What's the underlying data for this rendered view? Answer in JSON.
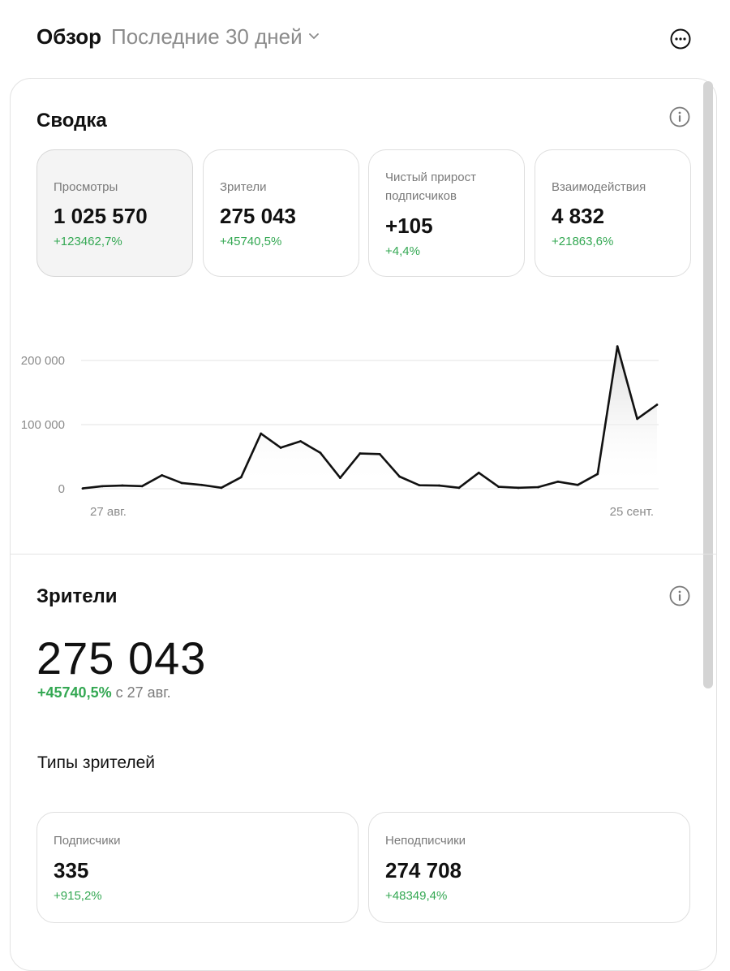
{
  "header": {
    "title": "Обзор",
    "range_label": "Последние 30 дней",
    "more_icon": "more-horizontal-icon"
  },
  "summary": {
    "title": "Сводка",
    "info_icon": "info-icon",
    "cards": [
      {
        "label": "Просмотры",
        "value": "1 025 570",
        "delta": "+123462,7%"
      },
      {
        "label": "Зрители",
        "value": "275 043",
        "delta": "+45740,5%"
      },
      {
        "label": "Чистый прирост подписчиков",
        "value": "+105",
        "delta": "+4,4%"
      },
      {
        "label": "Взаимодействия",
        "value": "4 832",
        "delta": "+21863,6%"
      }
    ]
  },
  "chart_data": {
    "type": "area",
    "y_ticks": [
      "200 000",
      "100 000",
      "0"
    ],
    "x_tick_labels": [
      "27 авг.",
      "25 сент."
    ],
    "ylim": [
      0,
      200000
    ],
    "grid": true,
    "values": [
      500,
      4000,
      5000,
      4000,
      21000,
      9000,
      6000,
      1500,
      18000,
      86000,
      64000,
      74000,
      56000,
      17000,
      55000,
      54000,
      19000,
      5500,
      5000,
      1500,
      25000,
      3000,
      1500,
      2500,
      11000,
      6000,
      23000,
      222000,
      109000,
      131000
    ],
    "colors": {
      "line": "#111111",
      "fill_top": "#d9d9d9",
      "grid": "#e3e3e3"
    }
  },
  "viewers": {
    "title": "Зрители",
    "info_icon": "info-icon",
    "total": "275 043",
    "delta": "+45740,5%",
    "since": "с 27 авг.",
    "types_title": "Типы зрителей",
    "types": [
      {
        "label": "Подписчики",
        "value": "335",
        "delta": "+915,2%"
      },
      {
        "label": "Неподписчики",
        "value": "274 708",
        "delta": "+48349,4%"
      }
    ]
  },
  "colors": {
    "positive": "#34a853",
    "muted": "#8b8b8b",
    "text": "#111111"
  }
}
